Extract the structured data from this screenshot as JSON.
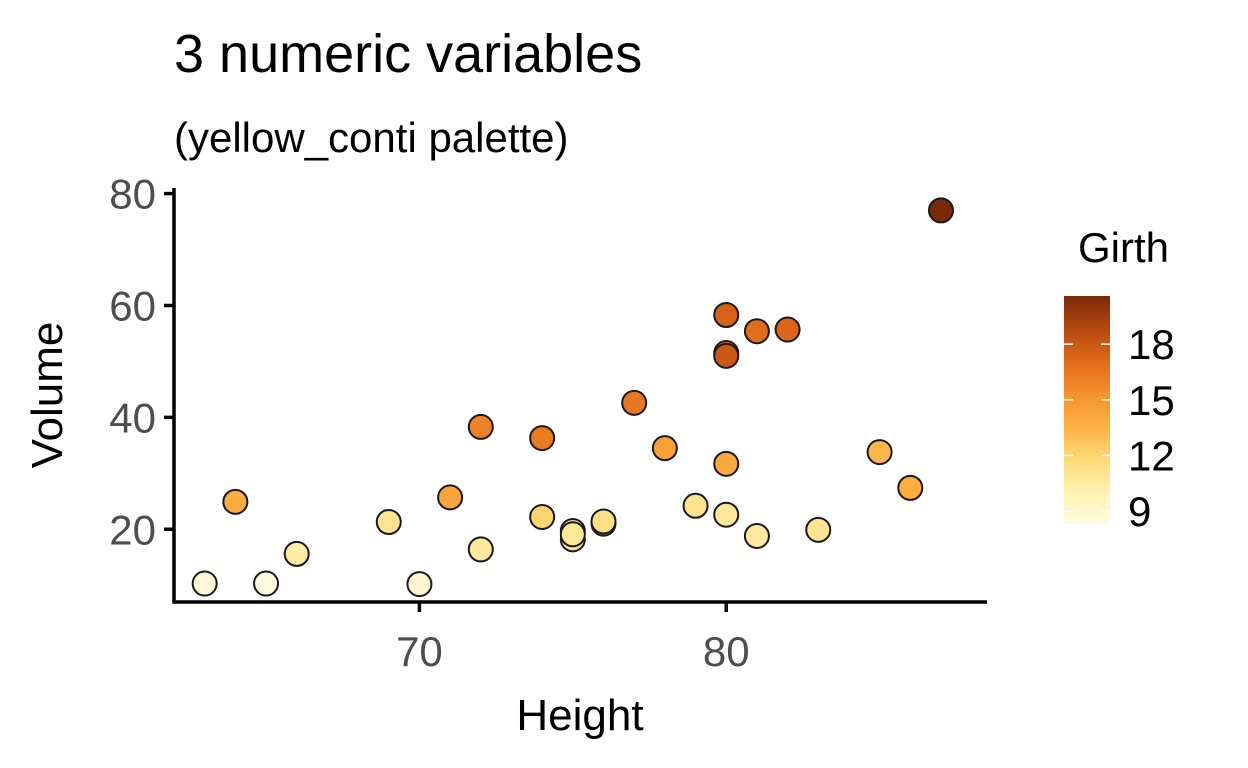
{
  "chart_data": {
    "type": "scatter",
    "title": "3 numeric variables",
    "subtitle": "(yellow_conti palette)",
    "xlabel": "Height",
    "ylabel": "Volume",
    "xlim": [
      62,
      88.5
    ],
    "ylim": [
      7,
      81
    ],
    "x_ticks": [
      70,
      80
    ],
    "y_ticks": [
      20,
      40,
      60,
      80
    ],
    "x_tick_labels": [
      "70",
      "80"
    ],
    "y_tick_labels": [
      "20",
      "40",
      "60",
      "80"
    ],
    "grid": false,
    "legend": {
      "title": "Girth",
      "placement": "right",
      "breaks": [
        9,
        12,
        15,
        18
      ],
      "labels": [
        "9",
        "12",
        "15",
        "18"
      ],
      "range": [
        8.3,
        20.6
      ],
      "colors": [
        "#fffbe0",
        "#fff2b0",
        "#ffd978",
        "#fdb043",
        "#f5912e",
        "#e06a1a",
        "#b5480e",
        "#7a2a0a"
      ]
    },
    "points": [
      {
        "x": 63,
        "y": 10.3,
        "girth": 8.6
      },
      {
        "x": 65,
        "y": 10.3,
        "girth": 8.3
      },
      {
        "x": 66,
        "y": 15.6,
        "girth": 10.5
      },
      {
        "x": 64,
        "y": 24.9,
        "girth": 13.8
      },
      {
        "x": 69,
        "y": 21.3,
        "girth": 11.0
      },
      {
        "x": 70,
        "y": 10.2,
        "girth": 8.8
      },
      {
        "x": 71,
        "y": 25.7,
        "girth": 14.2
      },
      {
        "x": 72,
        "y": 16.4,
        "girth": 10.7
      },
      {
        "x": 72,
        "y": 38.3,
        "girth": 16.0
      },
      {
        "x": 74,
        "y": 22.2,
        "girth": 12.0
      },
      {
        "x": 74,
        "y": 36.3,
        "girth": 16.3
      },
      {
        "x": 75,
        "y": 18.2,
        "girth": 11.1
      },
      {
        "x": 75,
        "y": 19.7,
        "girth": 11.2
      },
      {
        "x": 75,
        "y": 19.1,
        "girth": 10.8
      },
      {
        "x": 76,
        "y": 21.0,
        "girth": 11.3
      },
      {
        "x": 76,
        "y": 21.4,
        "girth": 11.4
      },
      {
        "x": 77,
        "y": 42.6,
        "girth": 16.5
      },
      {
        "x": 78,
        "y": 34.5,
        "girth": 14.5
      },
      {
        "x": 79,
        "y": 24.2,
        "girth": 11.2
      },
      {
        "x": 80,
        "y": 22.6,
        "girth": 10.8
      },
      {
        "x": 80,
        "y": 31.7,
        "girth": 14.0
      },
      {
        "x": 80,
        "y": 51.5,
        "girth": 17.3
      },
      {
        "x": 80,
        "y": 51.0,
        "girth": 18.0
      },
      {
        "x": 80,
        "y": 58.3,
        "girth": 17.5
      },
      {
        "x": 81,
        "y": 18.8,
        "girth": 10.6
      },
      {
        "x": 81,
        "y": 55.4,
        "girth": 17.0
      },
      {
        "x": 82,
        "y": 55.7,
        "girth": 17.3
      },
      {
        "x": 83,
        "y": 19.9,
        "girth": 11.0
      },
      {
        "x": 85,
        "y": 33.8,
        "girth": 13.3
      },
      {
        "x": 86,
        "y": 27.4,
        "girth": 13.7
      },
      {
        "x": 87,
        "y": 77.0,
        "girth": 20.6
      }
    ]
  }
}
